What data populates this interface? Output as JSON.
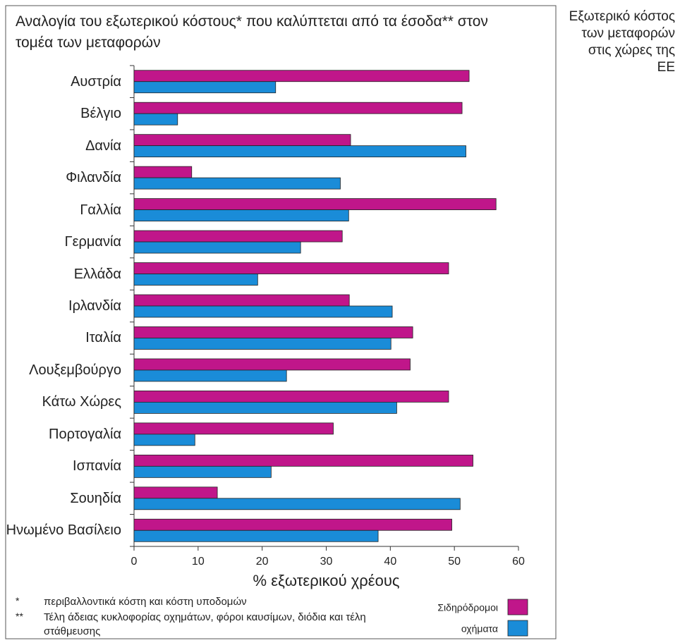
{
  "chart_data": {
    "type": "bar",
    "orientation": "horizontal",
    "title": "Αναλογία του εξωτερικού κόστους* που καλύπτεται από τα έσοδα** στον τομέα των μεταφορών",
    "side_title": "Εξωτερικό κόστος των μεταφορών στις χώρες της ΕΕ",
    "x_label": "% εξωτερικού χρέους",
    "categories": [
      "Αυστρία",
      "Βέλγιο",
      "Δανία",
      "Φιλανδία",
      "Γαλλία",
      "Γερμανία",
      "Ελλάδα",
      "Ιρλανδία",
      "Ιταλία",
      "Λουξεμβούργο",
      "Κάτω Χώρες",
      "Πορτογαλία",
      "Ισπανία",
      "Σουηδία",
      "Ηνωμένο Βασίλειο"
    ],
    "series": [
      {
        "name": "Σιδηρόδρομοι",
        "color": "#c0168a",
        "values": [
          52.3,
          51.2,
          33.8,
          9.0,
          56.5,
          32.5,
          49.1,
          33.6,
          43.5,
          43.1,
          49.1,
          31.1,
          52.9,
          13.0,
          49.6
        ]
      },
      {
        "name": "οχήματα",
        "color": "#1a8cd8",
        "values": [
          22.1,
          6.8,
          51.8,
          32.2,
          33.5,
          26.0,
          19.3,
          40.3,
          40.1,
          23.8,
          41.0,
          9.5,
          21.4,
          50.9,
          38.1
        ]
      }
    ],
    "xlim": [
      0,
      60
    ],
    "xticks": [
      0,
      10,
      20,
      30,
      40,
      50,
      60
    ],
    "footnotes": [
      {
        "marker": "*",
        "text": "περιβαλλοντικά κόστη και κόστη υποδομών"
      },
      {
        "marker": "**",
        "text": "Τέλη άδειας κυκλοφορίας οχημάτων, φόροι καυσίμων, διόδια και τέλη στάθμευσης"
      }
    ]
  }
}
